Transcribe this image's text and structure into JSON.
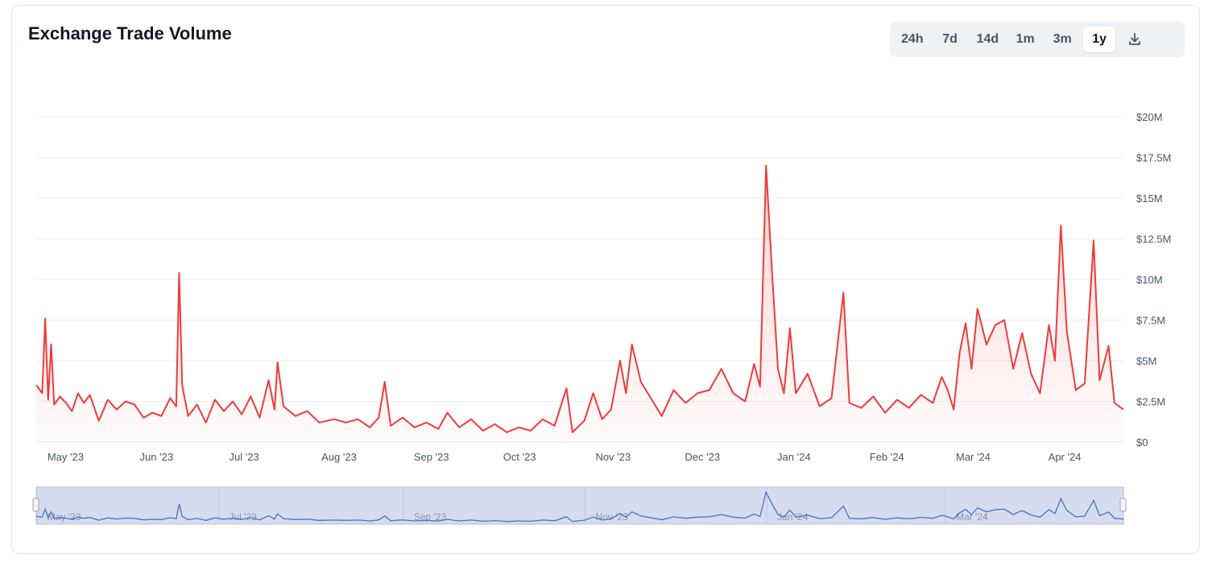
{
  "title": "Exchange Trade Volume",
  "ranges": [
    {
      "label": "24h",
      "active": false
    },
    {
      "label": "7d",
      "active": false
    },
    {
      "label": "14d",
      "active": false
    },
    {
      "label": "1m",
      "active": false
    },
    {
      "label": "3m",
      "active": false
    },
    {
      "label": "1y",
      "active": true
    }
  ],
  "download_icon": "download-icon",
  "colors": {
    "line": "#ef3b3b",
    "navigator_line": "#4f6fc4",
    "navigator_fill": "#d6dcef",
    "grid": "#eceff3"
  },
  "chart_data": {
    "type": "line",
    "title": "",
    "xlabel": "",
    "ylabel": "",
    "y_unit": "USD",
    "ylim": [
      0,
      20000000
    ],
    "y_ticks": [
      "$20M",
      "$17.5M",
      "$15M",
      "$12.5M",
      "$10M",
      "$7.5M",
      "$5M",
      "$2.5M",
      "$0"
    ],
    "y_tick_values": [
      20000000,
      17500000,
      15000000,
      12500000,
      10000000,
      7500000,
      5000000,
      2500000,
      0
    ],
    "x_range": [
      "2023-04-24",
      "2024-04-23"
    ],
    "x_ticks": [
      {
        "date": "2023-05-01",
        "label": "May '23"
      },
      {
        "date": "2023-06-01",
        "label": "Jun '23"
      },
      {
        "date": "2023-07-01",
        "label": "Jul '23"
      },
      {
        "date": "2023-08-01",
        "label": "Aug '23"
      },
      {
        "date": "2023-09-01",
        "label": "Sep '23"
      },
      {
        "date": "2023-10-01",
        "label": "Oct '23"
      },
      {
        "date": "2023-11-01",
        "label": "Nov '23"
      },
      {
        "date": "2023-12-01",
        "label": "Dec '23"
      },
      {
        "date": "2024-01-01",
        "label": "Jan '24"
      },
      {
        "date": "2024-02-01",
        "label": "Feb '24"
      },
      {
        "date": "2024-03-01",
        "label": "Mar '24"
      },
      {
        "date": "2024-04-01",
        "label": "Apr '24"
      }
    ],
    "navigator_ticks": [
      {
        "date": "2023-05-01",
        "label": "May '23"
      },
      {
        "date": "2023-07-01",
        "label": "Jul '23"
      },
      {
        "date": "2023-09-01",
        "label": "Sep '23"
      },
      {
        "date": "2023-11-01",
        "label": "Nov '23"
      },
      {
        "date": "2024-01-01",
        "label": "Jan '24"
      },
      {
        "date": "2024-03-01",
        "label": "Mar '24"
      }
    ],
    "grid": true,
    "legend": "none",
    "series": [
      {
        "points": [
          [
            "2023-04-24",
            3500000
          ],
          [
            "2023-04-26",
            3000000
          ],
          [
            "2023-04-27",
            7600000
          ],
          [
            "2023-04-28",
            2600000
          ],
          [
            "2023-04-29",
            6000000
          ],
          [
            "2023-04-30",
            2300000
          ],
          [
            "2023-05-02",
            2800000
          ],
          [
            "2023-05-04",
            2400000
          ],
          [
            "2023-05-06",
            1900000
          ],
          [
            "2023-05-08",
            3000000
          ],
          [
            "2023-05-10",
            2400000
          ],
          [
            "2023-05-12",
            2900000
          ],
          [
            "2023-05-15",
            1300000
          ],
          [
            "2023-05-18",
            2600000
          ],
          [
            "2023-05-21",
            2000000
          ],
          [
            "2023-05-24",
            2500000
          ],
          [
            "2023-05-27",
            2300000
          ],
          [
            "2023-05-30",
            1500000
          ],
          [
            "2023-06-02",
            1800000
          ],
          [
            "2023-06-05",
            1600000
          ],
          [
            "2023-06-08",
            2700000
          ],
          [
            "2023-06-10",
            2200000
          ],
          [
            "2023-06-11",
            10400000
          ],
          [
            "2023-06-12",
            3500000
          ],
          [
            "2023-06-14",
            1600000
          ],
          [
            "2023-06-17",
            2300000
          ],
          [
            "2023-06-20",
            1200000
          ],
          [
            "2023-06-23",
            2600000
          ],
          [
            "2023-06-26",
            1900000
          ],
          [
            "2023-06-29",
            2500000
          ],
          [
            "2023-07-02",
            1700000
          ],
          [
            "2023-07-05",
            2800000
          ],
          [
            "2023-07-08",
            1500000
          ],
          [
            "2023-07-11",
            3800000
          ],
          [
            "2023-07-13",
            2000000
          ],
          [
            "2023-07-14",
            4900000
          ],
          [
            "2023-07-16",
            2200000
          ],
          [
            "2023-07-20",
            1600000
          ],
          [
            "2023-07-24",
            1900000
          ],
          [
            "2023-07-28",
            1200000
          ],
          [
            "2023-08-02",
            1400000
          ],
          [
            "2023-08-06",
            1200000
          ],
          [
            "2023-08-10",
            1400000
          ],
          [
            "2023-08-14",
            900000
          ],
          [
            "2023-08-17",
            1500000
          ],
          [
            "2023-08-19",
            3700000
          ],
          [
            "2023-08-21",
            1000000
          ],
          [
            "2023-08-25",
            1500000
          ],
          [
            "2023-08-29",
            900000
          ],
          [
            "2023-09-02",
            1200000
          ],
          [
            "2023-09-06",
            800000
          ],
          [
            "2023-09-09",
            1800000
          ],
          [
            "2023-09-13",
            900000
          ],
          [
            "2023-09-17",
            1400000
          ],
          [
            "2023-09-21",
            700000
          ],
          [
            "2023-09-25",
            1100000
          ],
          [
            "2023-09-29",
            600000
          ],
          [
            "2023-10-03",
            900000
          ],
          [
            "2023-10-07",
            700000
          ],
          [
            "2023-10-11",
            1400000
          ],
          [
            "2023-10-15",
            1000000
          ],
          [
            "2023-10-19",
            3300000
          ],
          [
            "2023-10-21",
            600000
          ],
          [
            "2023-10-25",
            1300000
          ],
          [
            "2023-10-28",
            3000000
          ],
          [
            "2023-10-31",
            1400000
          ],
          [
            "2023-11-03",
            2000000
          ],
          [
            "2023-11-06",
            5000000
          ],
          [
            "2023-11-08",
            3000000
          ],
          [
            "2023-11-10",
            6000000
          ],
          [
            "2023-11-13",
            3700000
          ],
          [
            "2023-11-16",
            2800000
          ],
          [
            "2023-11-20",
            1600000
          ],
          [
            "2023-11-24",
            3200000
          ],
          [
            "2023-11-28",
            2400000
          ],
          [
            "2023-12-02",
            3000000
          ],
          [
            "2023-12-06",
            3200000
          ],
          [
            "2023-12-10",
            4500000
          ],
          [
            "2023-12-14",
            3000000
          ],
          [
            "2023-12-18",
            2500000
          ],
          [
            "2023-12-21",
            4800000
          ],
          [
            "2023-12-23",
            3400000
          ],
          [
            "2023-12-25",
            17000000
          ],
          [
            "2023-12-27",
            10500000
          ],
          [
            "2023-12-29",
            4500000
          ],
          [
            "2023-12-31",
            3000000
          ],
          [
            "2024-01-02",
            7000000
          ],
          [
            "2024-01-04",
            3000000
          ],
          [
            "2024-01-08",
            4200000
          ],
          [
            "2024-01-12",
            2200000
          ],
          [
            "2024-01-16",
            2700000
          ],
          [
            "2024-01-20",
            9200000
          ],
          [
            "2024-01-22",
            2400000
          ],
          [
            "2024-01-26",
            2100000
          ],
          [
            "2024-01-30",
            2800000
          ],
          [
            "2024-02-03",
            1800000
          ],
          [
            "2024-02-07",
            2600000
          ],
          [
            "2024-02-11",
            2100000
          ],
          [
            "2024-02-15",
            2900000
          ],
          [
            "2024-02-19",
            2400000
          ],
          [
            "2024-02-22",
            4000000
          ],
          [
            "2024-02-24",
            3200000
          ],
          [
            "2024-02-26",
            2000000
          ],
          [
            "2024-02-28",
            5500000
          ],
          [
            "2024-03-01",
            7300000
          ],
          [
            "2024-03-03",
            4500000
          ],
          [
            "2024-03-05",
            8200000
          ],
          [
            "2024-03-08",
            6000000
          ],
          [
            "2024-03-11",
            7200000
          ],
          [
            "2024-03-14",
            7500000
          ],
          [
            "2024-03-17",
            4500000
          ],
          [
            "2024-03-20",
            6700000
          ],
          [
            "2024-03-23",
            4200000
          ],
          [
            "2024-03-26",
            3000000
          ],
          [
            "2024-03-29",
            7200000
          ],
          [
            "2024-03-31",
            5000000
          ],
          [
            "2024-04-02",
            13300000
          ],
          [
            "2024-04-04",
            6800000
          ],
          [
            "2024-04-07",
            3200000
          ],
          [
            "2024-04-10",
            3600000
          ],
          [
            "2024-04-13",
            12400000
          ],
          [
            "2024-04-15",
            3800000
          ],
          [
            "2024-04-18",
            5900000
          ],
          [
            "2024-04-20",
            2400000
          ],
          [
            "2024-04-23",
            2000000
          ]
        ]
      }
    ]
  }
}
